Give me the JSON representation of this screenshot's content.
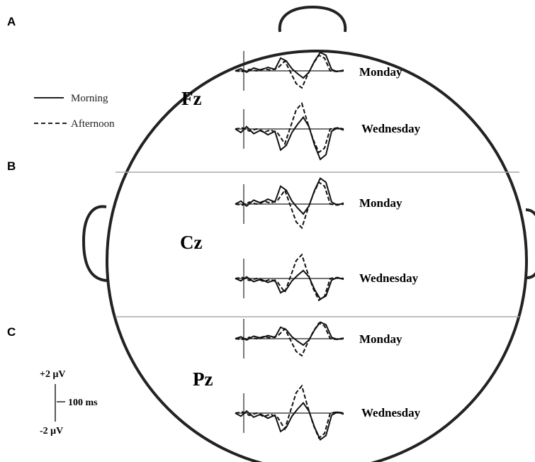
{
  "panels": [
    {
      "label": "A",
      "electrode": "Fz",
      "days": [
        "Monday",
        "Wednesday"
      ]
    },
    {
      "label": "B",
      "electrode": "Cz",
      "days": [
        "Monday",
        "Wednesday"
      ]
    },
    {
      "label": "C",
      "electrode": "Pz",
      "days": [
        "Monday",
        "Wednesday"
      ]
    }
  ],
  "legend": [
    {
      "label": "Morning"
    },
    {
      "label": "Afternoon"
    }
  ],
  "scale": {
    "top": "+2 μV",
    "time": "100 ms",
    "bottom": "-2 μV"
  }
}
